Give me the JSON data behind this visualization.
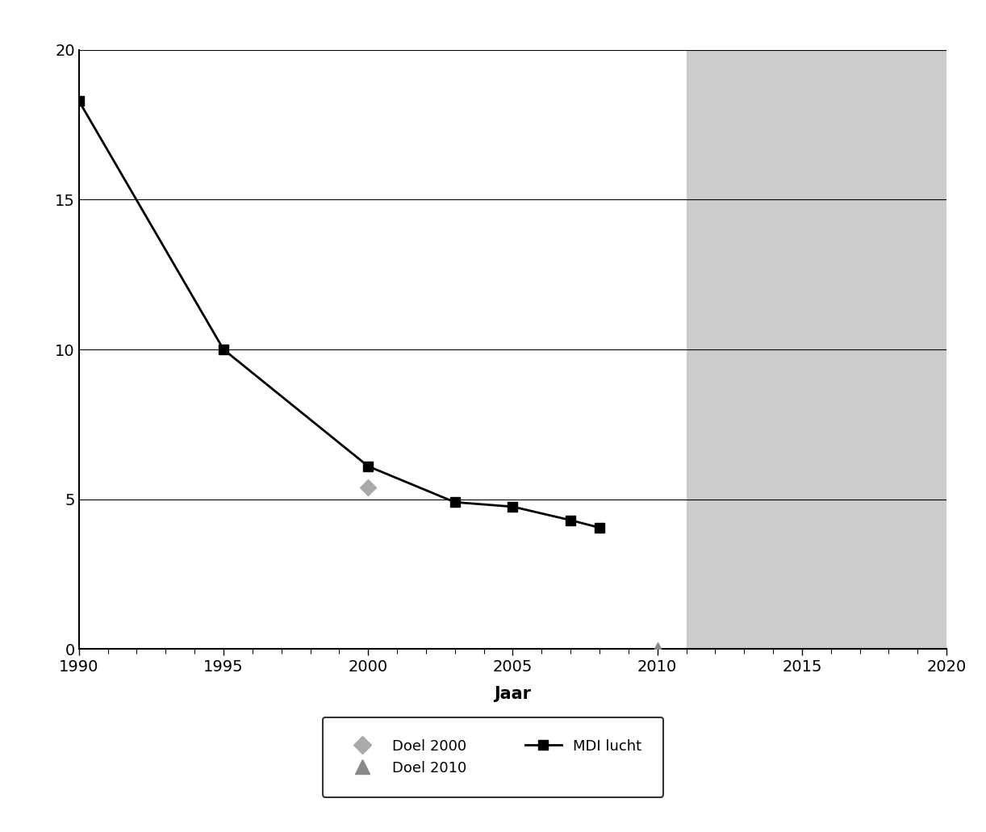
{
  "mdi_lucht_x": [
    1990,
    1995,
    2000,
    2003,
    2005,
    2007,
    2008
  ],
  "mdi_lucht_y": [
    18.3,
    10.0,
    6.1,
    4.9,
    4.75,
    4.3,
    4.05
  ],
  "doel_2000_x": 2000,
  "doel_2000_y": 5.4,
  "doel_2010_x": 2010,
  "doel_2010_y": 0.0,
  "shade_xmin": 2011,
  "shade_xmax": 2020,
  "shade_color": "#cccccc",
  "line_color": "#000000",
  "xlabel": "Jaar",
  "xlabel_fontsize": 15,
  "xlabel_fontweight": "bold",
  "ylim": [
    0,
    20
  ],
  "xlim": [
    1990,
    2020
  ],
  "yticks": [
    0,
    5,
    10,
    15,
    20
  ],
  "xticks": [
    1990,
    1995,
    2000,
    2005,
    2010,
    2015,
    2020
  ],
  "legend_labels": [
    "Doel 2000",
    "Doel 2010",
    "MDI lucht"
  ],
  "doel2000_color": "#aaaaaa",
  "doel2010_color": "#888888",
  "background_color": "#ffffff"
}
